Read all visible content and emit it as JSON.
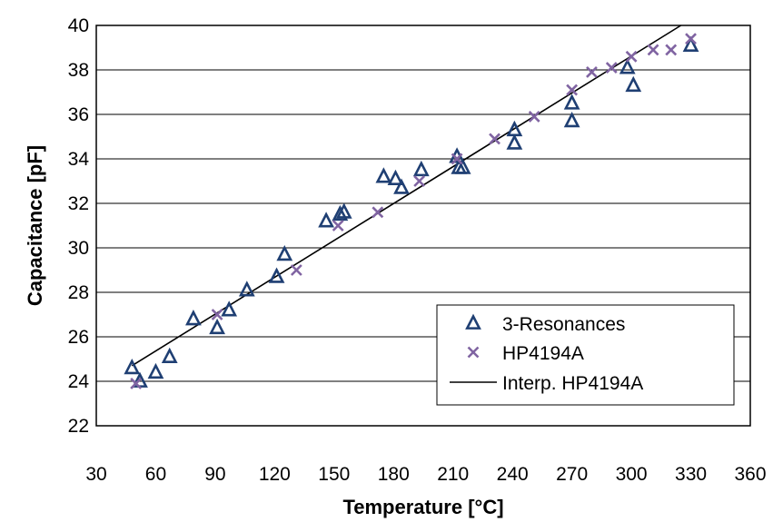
{
  "chart_data": {
    "type": "scatter",
    "xlabel": "Temperature [°C]",
    "ylabel": "Capacitance [pF]",
    "xlim": [
      30,
      360
    ],
    "ylim": [
      22,
      40
    ],
    "xticks": [
      30,
      60,
      90,
      120,
      150,
      180,
      210,
      240,
      270,
      300,
      330,
      360
    ],
    "yticks": [
      22,
      24,
      26,
      28,
      30,
      32,
      34,
      36,
      38,
      40
    ],
    "grid": "y-major",
    "legend": "bottom-right",
    "colors": {
      "resonances": "#1f3f73",
      "hp": "#8064a2",
      "line": "#000000"
    },
    "series": [
      {
        "name": "3-Resonances",
        "marker": "triangle",
        "points": [
          [
            48,
            24.6
          ],
          [
            52,
            24.0
          ],
          [
            60,
            24.4
          ],
          [
            67,
            25.1
          ],
          [
            79,
            26.8
          ],
          [
            91,
            26.4
          ],
          [
            97,
            27.2
          ],
          [
            106,
            28.1
          ],
          [
            121,
            28.7
          ],
          [
            125,
            29.7
          ],
          [
            146,
            31.2
          ],
          [
            153,
            31.5
          ],
          [
            155,
            31.6
          ],
          [
            175,
            33.2
          ],
          [
            181,
            33.1
          ],
          [
            184,
            32.7
          ],
          [
            194,
            33.5
          ],
          [
            212,
            34.1
          ],
          [
            213,
            33.6
          ],
          [
            215,
            33.6
          ],
          [
            241,
            35.3
          ],
          [
            241,
            34.7
          ],
          [
            270,
            36.5
          ],
          [
            270,
            35.7
          ],
          [
            298,
            38.1
          ],
          [
            301,
            37.3
          ],
          [
            330,
            39.1
          ]
        ]
      },
      {
        "name": "HP4194A",
        "marker": "x",
        "points": [
          [
            50,
            23.9
          ],
          [
            91,
            27.0
          ],
          [
            131,
            29.0
          ],
          [
            152,
            31.0
          ],
          [
            172,
            31.6
          ],
          [
            193,
            33.0
          ],
          [
            212,
            34.0
          ],
          [
            231,
            34.9
          ],
          [
            251,
            35.9
          ],
          [
            270,
            37.1
          ],
          [
            280,
            37.9
          ],
          [
            290,
            38.1
          ],
          [
            300,
            38.6
          ],
          [
            311,
            38.9
          ],
          [
            320,
            38.9
          ],
          [
            330,
            39.4
          ]
        ]
      },
      {
        "name": "Interp. HP4194A",
        "marker": "line",
        "points": [
          [
            48,
            24.7
          ],
          [
            325,
            40.0
          ]
        ]
      }
    ]
  }
}
